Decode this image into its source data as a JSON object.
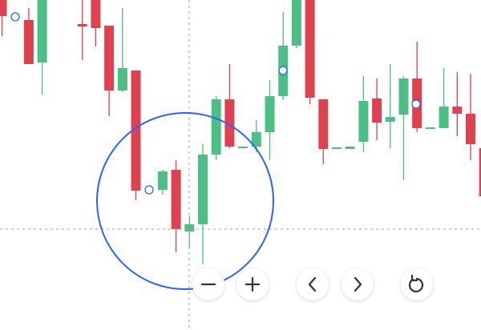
{
  "chart_data": {
    "type": "candlestick",
    "open": [
      412,
      null,
      387,
      334,
      null,
      null,
      382,
      412,
      380,
      299,
      324,
      null,
      175,
      200,
      123,
      132,
      219,
      288,
      227,
      229,
      247,
      292,
      355,
      412,
      288,
      226,
      226,
      235,
      289,
      260,
      269,
      314,
      251,
      252,
      279,
      270,
      227
    ],
    "high": [
      412,
      null,
      402,
      412,
      null,
      null,
      412,
      412,
      380,
      402,
      324,
      null,
      200,
      212,
      142,
      232,
      292,
      332,
      229,
      262,
      312,
      397,
      412,
      412,
      288,
      228,
      229,
      317,
      314,
      332,
      317,
      360,
      253,
      327,
      322,
      320,
      230
    ],
    "low": [
      367,
      null,
      332,
      294,
      null,
      null,
      337,
      354,
      267,
      297,
      162,
      null,
      169,
      97,
      102,
      82,
      212,
      227,
      227,
      222,
      212,
      287,
      352,
      282,
      207,
      226,
      226,
      222,
      237,
      227,
      187,
      247,
      251,
      252,
      242,
      212,
      162
    ],
    "close": [
      392,
      null,
      332,
      412,
      null,
      null,
      379,
      377,
      299,
      327,
      174,
      null,
      198,
      126,
      132,
      219,
      288,
      229,
      229,
      247,
      292,
      355,
      412,
      290,
      226,
      228,
      229,
      286,
      259,
      266,
      314,
      252,
      253,
      279,
      270,
      232,
      167
    ],
    "up_color": "#4cbf85",
    "down_color": "#e0414f",
    "ylim": [
      0,
      412
    ]
  }
}
